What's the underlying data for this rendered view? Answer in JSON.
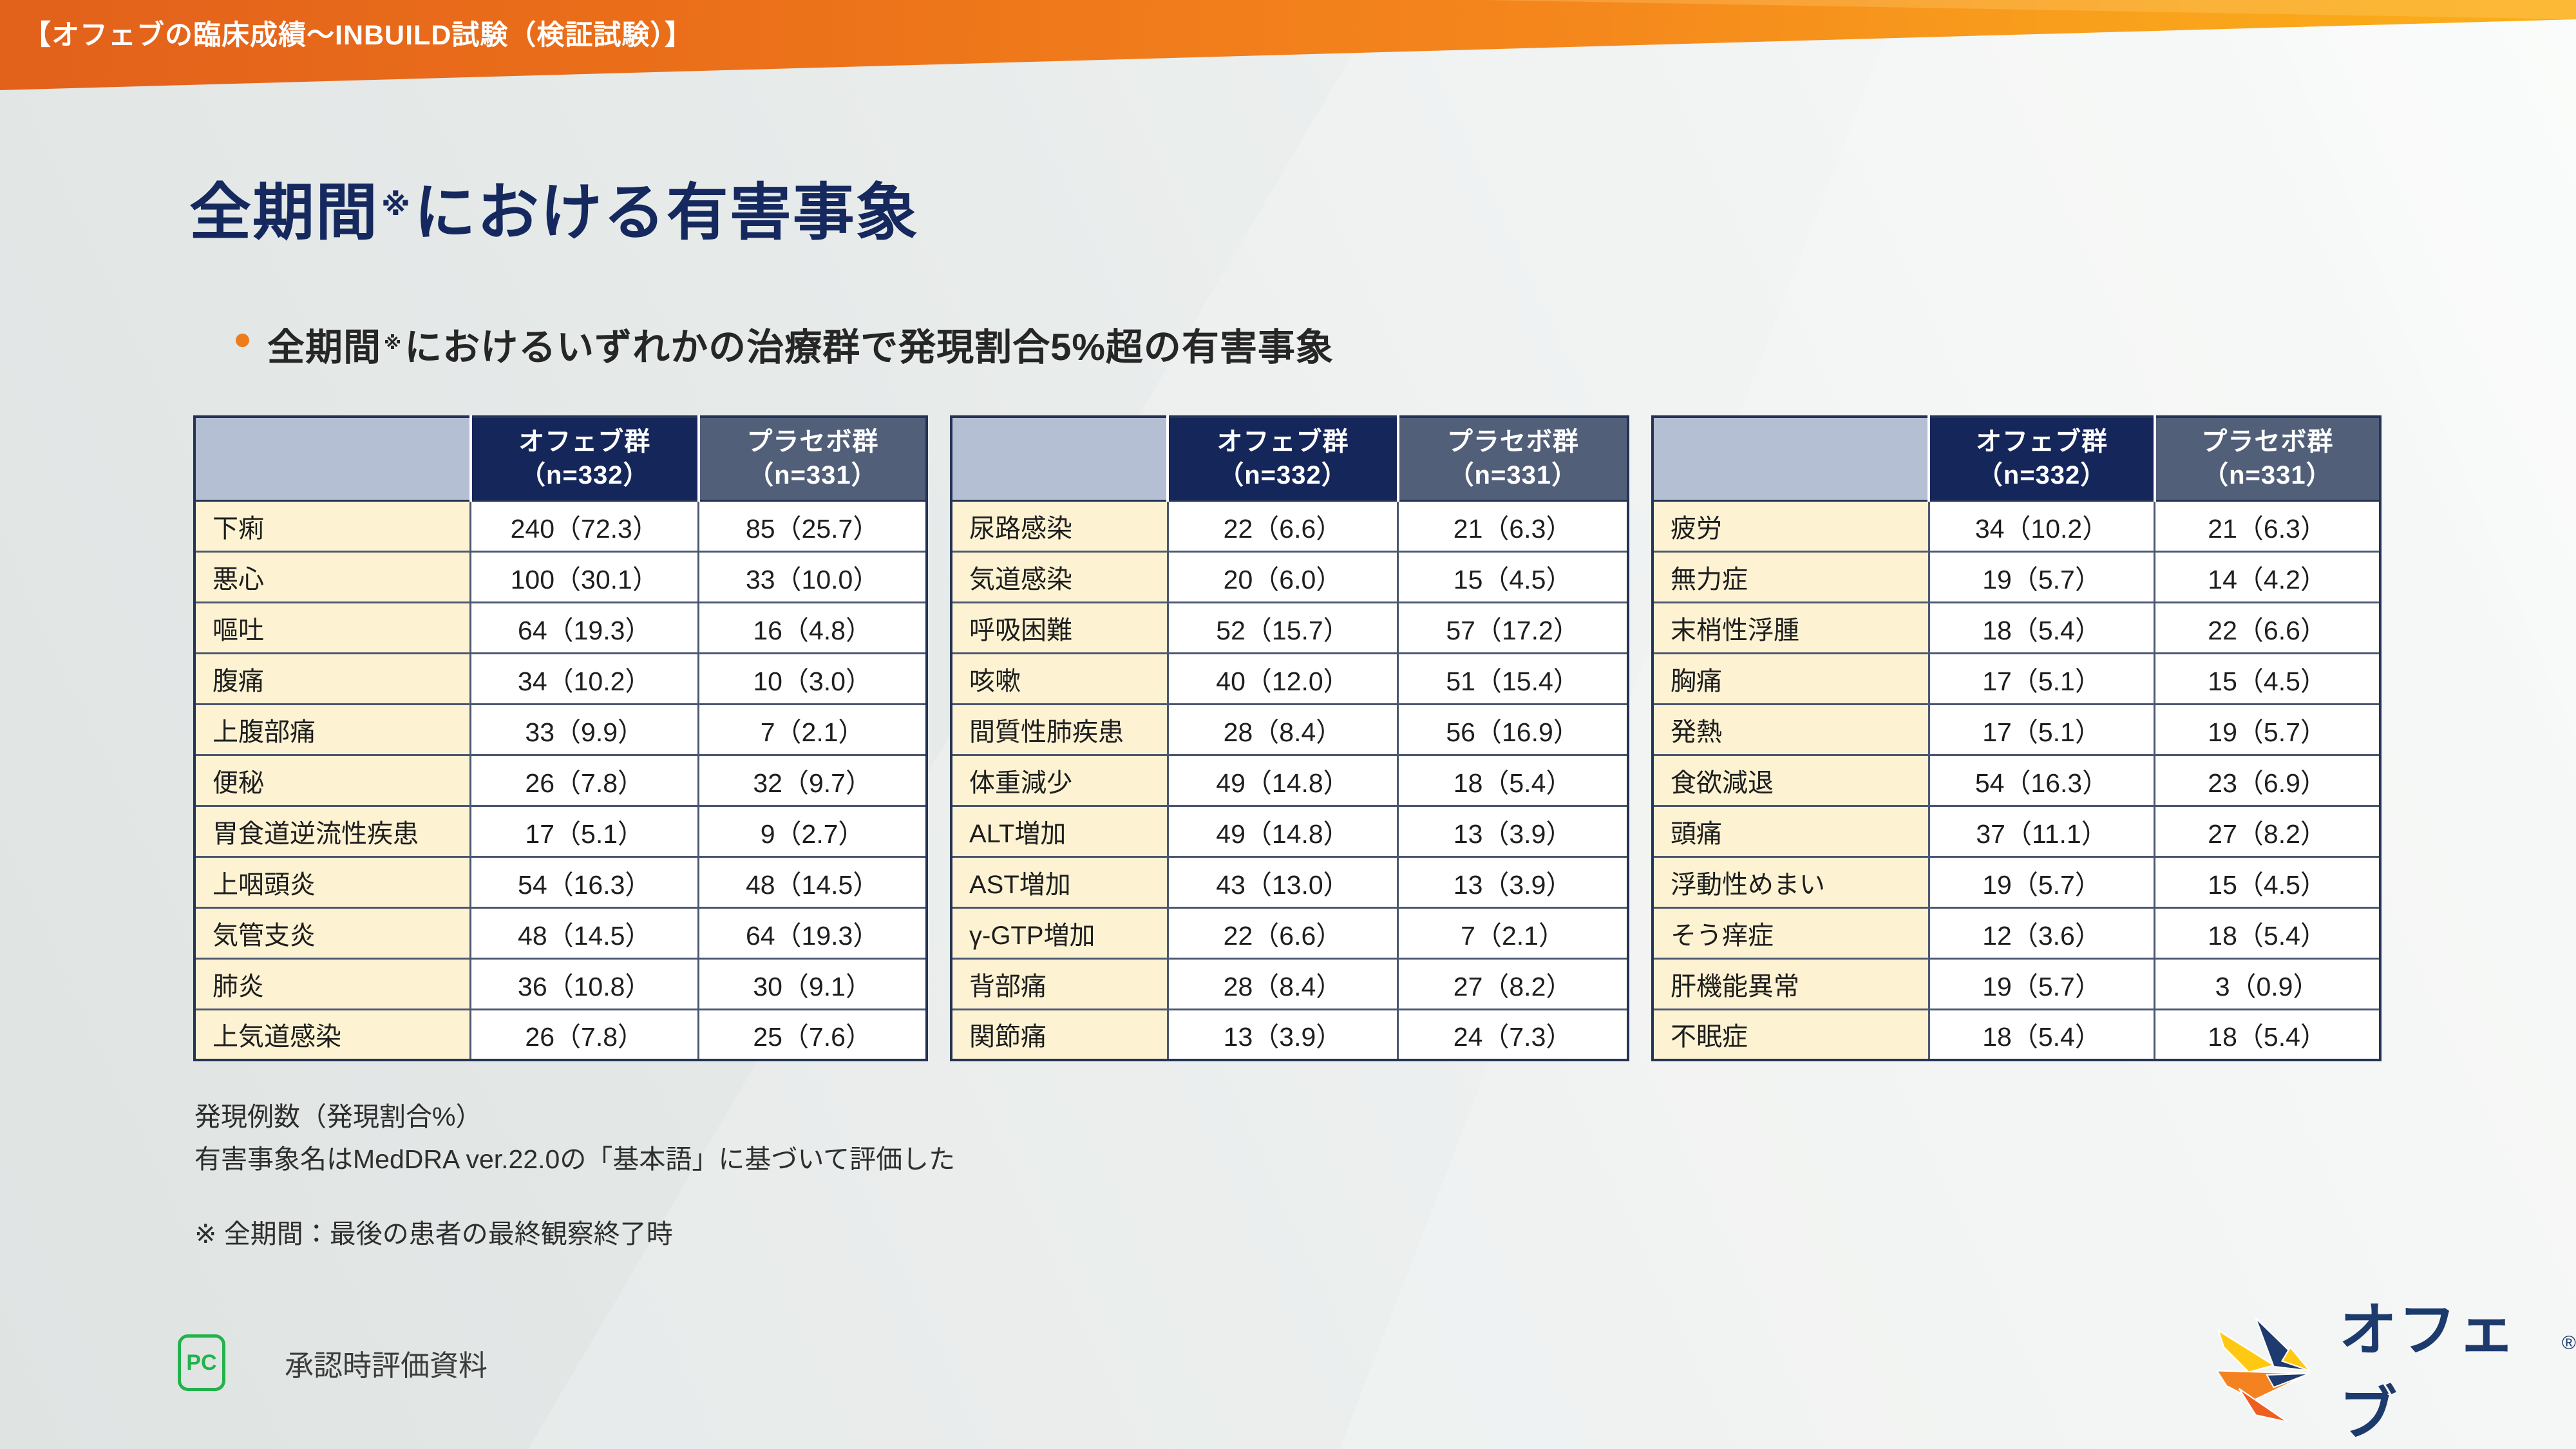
{
  "banner": {
    "label": "【オフェブの臨床成績〜INBUILD試験（検証試験）】"
  },
  "title": {
    "pre": "全期間",
    "sup": "※",
    "post": "における有害事象"
  },
  "bullet": {
    "pre": "全期間",
    "sup": "※",
    "post": "におけるいずれかの治療群で発現割合5%超の有害事象"
  },
  "table_header": {
    "ofev": "オフェブ群",
    "ofev_n": "（n=332）",
    "placebo": "プラセボ群",
    "placebo_n": "（n=331）"
  },
  "tables": [
    {
      "rows": [
        {
          "label": "下痢",
          "drug": "240（72.3）",
          "placebo": "85（25.7）"
        },
        {
          "label": "悪心",
          "drug": "100（30.1）",
          "placebo": "33（10.0）"
        },
        {
          "label": "嘔吐",
          "drug": "64（19.3）",
          "placebo": "16（4.8）"
        },
        {
          "label": "腹痛",
          "drug": "34（10.2）",
          "placebo": "10（3.0）"
        },
        {
          "label": "上腹部痛",
          "drug": "33（9.9）",
          "placebo": "7（2.1）"
        },
        {
          "label": "便秘",
          "drug": "26（7.8）",
          "placebo": "32（9.7）"
        },
        {
          "label": "胃食道逆流性疾患",
          "drug": "17（5.1）",
          "placebo": "9（2.7）"
        },
        {
          "label": "上咽頭炎",
          "drug": "54（16.3）",
          "placebo": "48（14.5）"
        },
        {
          "label": "気管支炎",
          "drug": "48（14.5）",
          "placebo": "64（19.3）"
        },
        {
          "label": "肺炎",
          "drug": "36（10.8）",
          "placebo": "30（9.1）"
        },
        {
          "label": "上気道感染",
          "drug": "26（7.8）",
          "placebo": "25（7.6）"
        }
      ]
    },
    {
      "rows": [
        {
          "label": "尿路感染",
          "drug": "22（6.6）",
          "placebo": "21（6.3）"
        },
        {
          "label": "気道感染",
          "drug": "20（6.0）",
          "placebo": "15（4.5）"
        },
        {
          "label": "呼吸困難",
          "drug": "52（15.7）",
          "placebo": "57（17.2）"
        },
        {
          "label": "咳嗽",
          "drug": "40（12.0）",
          "placebo": "51（15.4）"
        },
        {
          "label": "間質性肺疾患",
          "drug": "28（8.4）",
          "placebo": "56（16.9）"
        },
        {
          "label": "体重減少",
          "drug": "49（14.8）",
          "placebo": "18（5.4）"
        },
        {
          "label": "ALT増加",
          "drug": "49（14.8）",
          "placebo": "13（3.9）"
        },
        {
          "label": "AST増加",
          "drug": "43（13.0）",
          "placebo": "13（3.9）"
        },
        {
          "label": "γ-GTP増加",
          "drug": "22（6.6）",
          "placebo": "7（2.1）"
        },
        {
          "label": "背部痛",
          "drug": "28（8.4）",
          "placebo": "27（8.2）"
        },
        {
          "label": "関節痛",
          "drug": "13（3.9）",
          "placebo": "24（7.3）"
        }
      ]
    },
    {
      "rows": [
        {
          "label": "疲労",
          "drug": "34（10.2）",
          "placebo": "21（6.3）"
        },
        {
          "label": "無力症",
          "drug": "19（5.7）",
          "placebo": "14（4.2）"
        },
        {
          "label": "末梢性浮腫",
          "drug": "18（5.4）",
          "placebo": "22（6.6）"
        },
        {
          "label": "胸痛",
          "drug": "17（5.1）",
          "placebo": "15（4.5）"
        },
        {
          "label": "発熱",
          "drug": "17（5.1）",
          "placebo": "19（5.7）"
        },
        {
          "label": "食欲減退",
          "drug": "54（16.3）",
          "placebo": "23（6.9）"
        },
        {
          "label": "頭痛",
          "drug": "37（11.1）",
          "placebo": "27（8.2）"
        },
        {
          "label": "浮動性めまい",
          "drug": "19（5.7）",
          "placebo": "15（4.5）"
        },
        {
          "label": "そう痒症",
          "drug": "12（3.6）",
          "placebo": "18（5.4）"
        },
        {
          "label": "肝機能異常",
          "drug": "19（5.7）",
          "placebo": "3（0.9）"
        },
        {
          "label": "不眠症",
          "drug": "18（5.4）",
          "placebo": "18（5.4）"
        }
      ]
    }
  ],
  "notes": {
    "line1": "発現例数（発現割合%）",
    "line2": "有害事象名はMedDRA ver.22.0の「基本語」に基づいて評価した",
    "asterisk_note": "※ 全期間：最後の患者の最終観察終了時"
  },
  "footer": {
    "pc_mark": "PC",
    "approval_label": "承認時評価資料",
    "logo_text": "オフェブ",
    "registered_mark": "®"
  },
  "colors": {
    "banner_orange_left": "#e2611b",
    "banner_orange_right": "#fbae18",
    "title_navy": "#16295e",
    "header_navy": "#15265a",
    "header_slate": "#525f79",
    "header_light": "#b5bfd3",
    "row_label_cream": "#fdf3d3",
    "bullet_orange": "#ee7c19",
    "pc_green": "#23b24b",
    "logo_navy": "#1d3a6d"
  }
}
